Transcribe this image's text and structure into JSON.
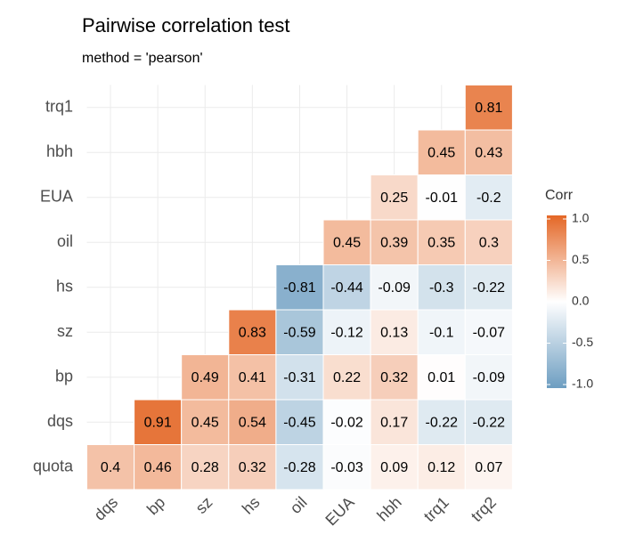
{
  "chart_data": {
    "type": "heatmap",
    "title": "Pairwise correlation test",
    "subtitle": "method = 'pearson'",
    "x": [
      "dqs",
      "bp",
      "sz",
      "hs",
      "oil",
      "EUA",
      "hbh",
      "trq1",
      "trq2"
    ],
    "y": [
      "quota",
      "dqs",
      "bp",
      "sz",
      "hs",
      "oil",
      "EUA",
      "hbh",
      "trq1"
    ],
    "values": [
      [
        0.4,
        0.46,
        0.28,
        0.32,
        -0.28,
        -0.03,
        0.09,
        0.12,
        0.07
      ],
      [
        null,
        0.91,
        0.45,
        0.54,
        -0.45,
        -0.02,
        0.17,
        -0.22,
        -0.22
      ],
      [
        null,
        null,
        0.49,
        0.41,
        -0.31,
        0.22,
        0.32,
        0.01,
        -0.09
      ],
      [
        null,
        null,
        null,
        0.83,
        -0.59,
        -0.12,
        0.13,
        -0.1,
        -0.07
      ],
      [
        null,
        null,
        null,
        null,
        -0.81,
        -0.44,
        -0.09,
        -0.3,
        -0.22
      ],
      [
        null,
        null,
        null,
        null,
        null,
        0.45,
        0.39,
        0.35,
        0.3
      ],
      [
        null,
        null,
        null,
        null,
        null,
        null,
        0.25,
        -0.01,
        -0.2
      ],
      [
        null,
        null,
        null,
        null,
        null,
        null,
        null,
        0.45,
        0.43
      ],
      [
        null,
        null,
        null,
        null,
        null,
        null,
        null,
        null,
        0.81
      ]
    ],
    "legend_title": "Corr",
    "colors": {
      "low": "#6D9EC1",
      "mid": "#FFFFFF",
      "high": "#E46726"
    },
    "zlim": [
      -1,
      1
    ],
    "zticks": [
      {
        "value": 1,
        "label": "1.0"
      },
      {
        "value": 0.5,
        "label": "0.5"
      },
      {
        "value": 0,
        "label": "0.0"
      },
      {
        "value": -0.5,
        "label": "-0.5"
      },
      {
        "value": -1,
        "label": "-1.0"
      }
    ],
    "grid": true
  }
}
